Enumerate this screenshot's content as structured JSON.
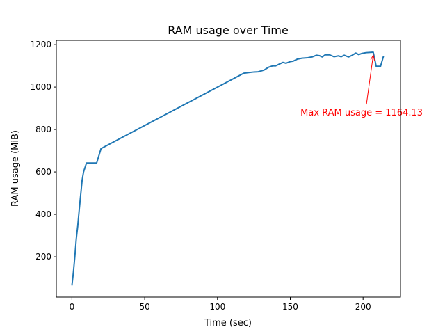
{
  "chart_data": {
    "type": "line",
    "title": "RAM usage over Time",
    "xlabel": "Time (sec)",
    "ylabel": "RAM usage (MiB)",
    "xlim": [
      -10.7,
      225.7
    ],
    "ylim": [
      10,
      1220
    ],
    "xticks": [
      0,
      50,
      100,
      150,
      200
    ],
    "yticks": [
      200,
      400,
      600,
      800,
      1000,
      1200
    ],
    "grid": false,
    "line_color": "#1f77b4",
    "annotation_color": "#ff0000",
    "x": [
      0,
      1,
      2,
      3,
      4,
      5,
      6,
      7,
      8,
      10,
      17,
      20,
      118,
      120,
      125,
      128,
      132,
      135,
      138,
      140,
      143,
      145,
      147,
      150,
      152,
      155,
      158,
      162,
      165,
      168,
      170,
      172,
      174,
      177,
      180,
      183,
      185,
      187,
      190,
      192,
      195,
      197,
      199,
      202,
      207,
      209,
      212,
      214
    ],
    "y": [
      65,
      125,
      200,
      285,
      345,
      420,
      490,
      560,
      600,
      642,
      642,
      710,
      1065,
      1067,
      1071,
      1072,
      1080,
      1093,
      1100,
      1100,
      1110,
      1116,
      1112,
      1120,
      1122,
      1132,
      1136,
      1138,
      1142,
      1150,
      1148,
      1142,
      1152,
      1152,
      1143,
      1147,
      1143,
      1150,
      1142,
      1148,
      1160,
      1153,
      1158,
      1162,
      1164.13,
      1098,
      1098,
      1145
    ],
    "annotation": {
      "text": "Max RAM usage = 1164.13",
      "point": [
        207,
        1164.13
      ],
      "text_pos": [
        157,
        866
      ]
    }
  }
}
